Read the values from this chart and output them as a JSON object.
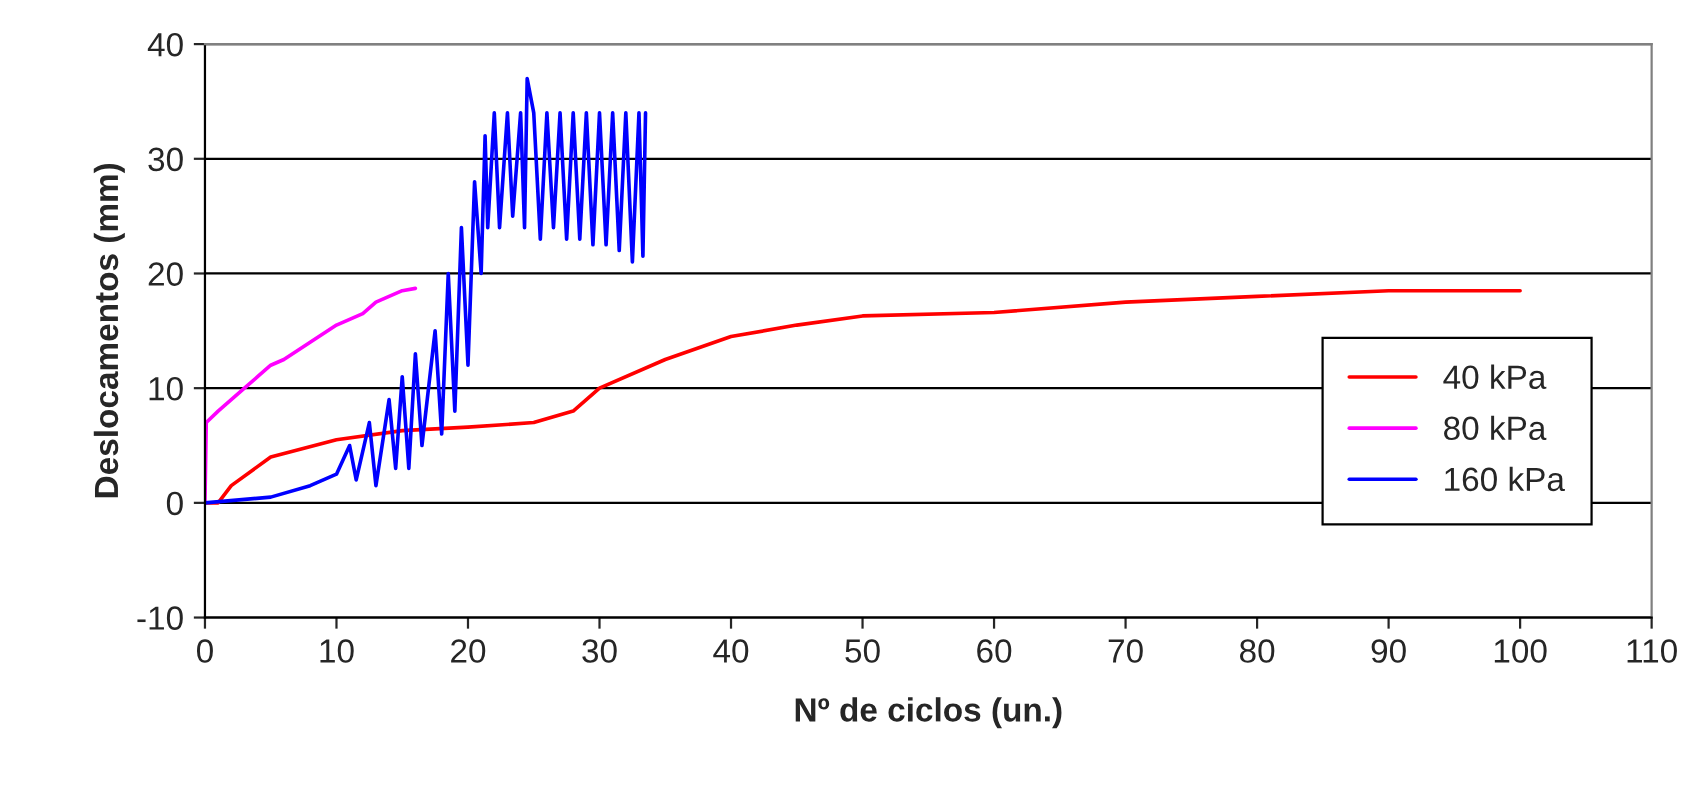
{
  "chart_data": {
    "type": "line",
    "xlabel": "Nº de ciclos (un.)",
    "ylabel": "Deslocamentos (mm)",
    "xlim": [
      0,
      110
    ],
    "xticks": [
      0,
      10,
      20,
      30,
      40,
      50,
      60,
      70,
      80,
      90,
      100,
      110
    ],
    "ylim": [
      -10,
      40
    ],
    "yticks": [
      -10,
      0,
      10,
      20,
      30,
      40
    ],
    "grid": "y",
    "legend": "right",
    "marker": "none",
    "line_style": "solid",
    "series": [
      {
        "name": "40 kPa",
        "color": "#ff0000",
        "x": [
          0,
          1,
          2,
          5,
          10,
          15,
          20,
          25,
          28,
          30,
          35,
          40,
          45,
          50,
          60,
          70,
          80,
          90,
          100
        ],
        "values": [
          0,
          0,
          1.5,
          4,
          5.5,
          6.3,
          6.6,
          7,
          8,
          10,
          12.5,
          14.5,
          15.5,
          16.3,
          16.6,
          17.5,
          18,
          18.5,
          18.5
        ]
      },
      {
        "name": "80 kPa",
        "color": "#ff00ff",
        "x": [
          0,
          0.1,
          1,
          2,
          3,
          4,
          5,
          6,
          8,
          10,
          12,
          13,
          15,
          16
        ],
        "values": [
          0,
          7,
          8,
          9,
          10,
          11,
          12,
          12.5,
          14,
          15.5,
          16.5,
          17.5,
          18.5,
          18.7
        ]
      },
      {
        "name": "160 kPa",
        "color": "#0000ff",
        "x": [
          0,
          5,
          8,
          10,
          11,
          11.5,
          12.5,
          13,
          14,
          14.5,
          15,
          15.5,
          16,
          16.5,
          17.5,
          18,
          18.5,
          19,
          19.5,
          20,
          20.5,
          21,
          21.3,
          21.5,
          22,
          22.4,
          23,
          23.4,
          24,
          24.3,
          24.5,
          25,
          25.5,
          26,
          26.5,
          27,
          27.5,
          28,
          28.5,
          29,
          29.5,
          30,
          30.5,
          31,
          31.5,
          32,
          32.5,
          33,
          33.3,
          33.5
        ],
        "values": [
          0,
          0.5,
          1.5,
          2.5,
          5,
          2,
          7,
          1.5,
          9,
          3,
          11,
          3,
          13,
          5,
          15,
          6,
          20,
          8,
          24,
          12,
          28,
          20,
          32,
          24,
          34,
          24,
          34,
          25,
          34,
          24,
          37,
          34,
          23,
          34,
          24,
          34,
          23,
          34,
          23,
          34,
          22.5,
          34,
          22.5,
          34,
          22,
          34,
          21,
          34,
          21.5,
          34
        ]
      }
    ]
  }
}
